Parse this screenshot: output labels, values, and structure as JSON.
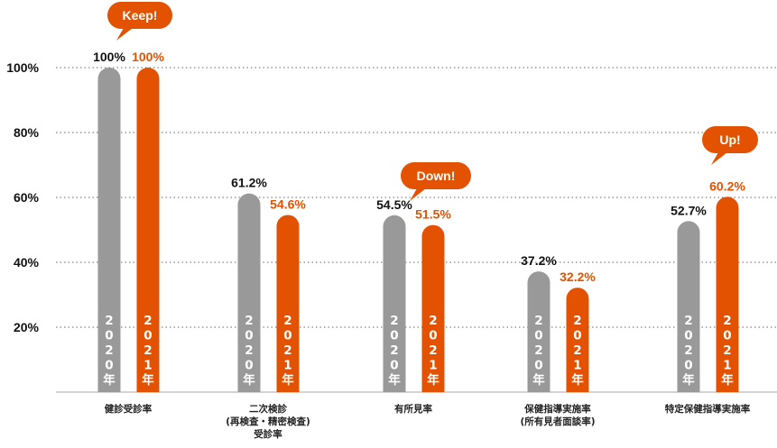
{
  "colors": {
    "series_2020": "#999999",
    "series_2021": "#e25200",
    "grid": "#666666",
    "label_2020": "#111111",
    "label_2021": "#e25200"
  },
  "chart_data": {
    "type": "bar",
    "categories": [
      "健診受診率",
      "二次検診\n(再検査・精密検査)\n受診率",
      "有所見率",
      "保健指導実施率\n(所有見者面談率)",
      "特定保健指導実施率"
    ],
    "series": [
      {
        "name": "2020年",
        "values": [
          100,
          61.2,
          54.5,
          37.2,
          52.7
        ],
        "labels": [
          "100%",
          "61.2%",
          "54.5%",
          "37.2%",
          "52.7%"
        ]
      },
      {
        "name": "2021年",
        "values": [
          100,
          54.6,
          51.5,
          32.2,
          60.2
        ],
        "labels": [
          "100%",
          "54.6%",
          "51.5%",
          "32.2%",
          "60.2%"
        ]
      }
    ],
    "ylim": [
      0,
      100
    ],
    "yticks": [
      20,
      40,
      60,
      80,
      100
    ],
    "ytick_labels": [
      "20%",
      "40%",
      "60%",
      "80%",
      "100%"
    ],
    "grid": true,
    "annotations": [
      {
        "text": "Keep!",
        "category_index": 0
      },
      {
        "text": "Down!",
        "category_index": 2
      },
      {
        "text": "Up!",
        "category_index": 4
      }
    ]
  }
}
